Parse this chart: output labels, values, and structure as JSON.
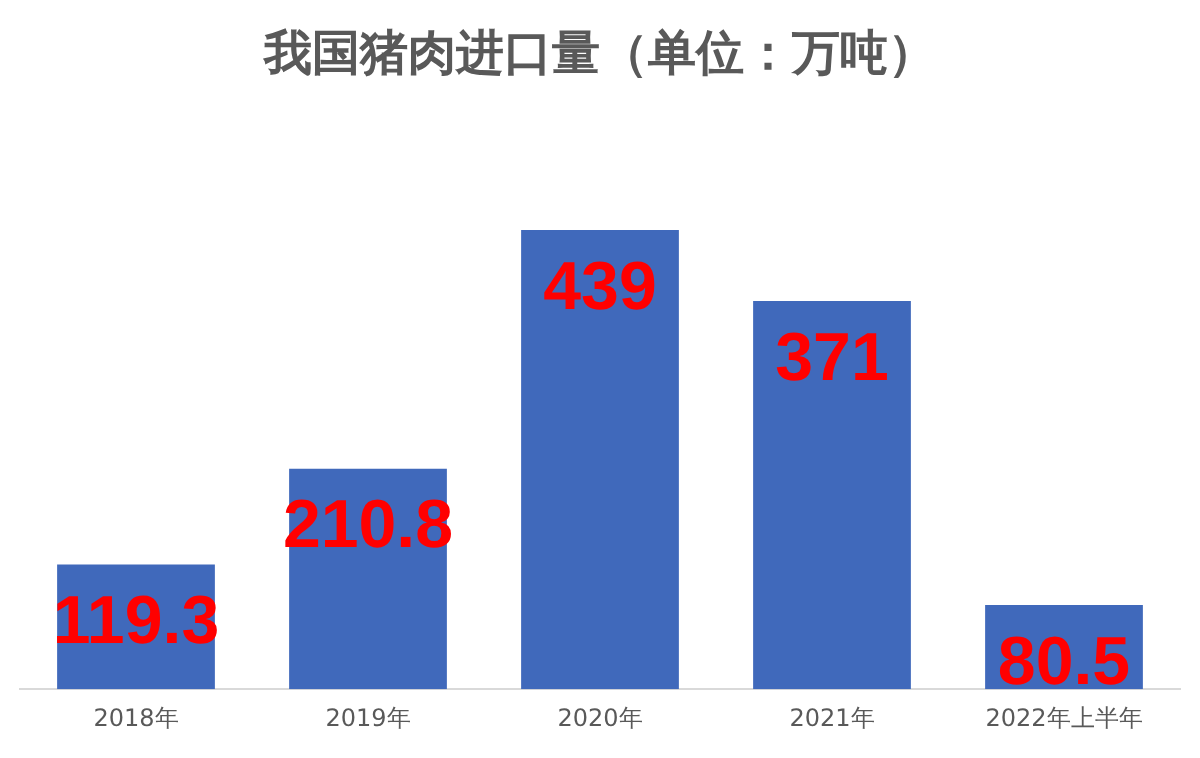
{
  "chart_data": {
    "type": "bar",
    "title": "我国猪肉进口量（单位：万吨）",
    "categories": [
      "2018年",
      "2019年",
      "2020年",
      "2021年",
      "2022年上半年"
    ],
    "values": [
      119.3,
      210.8,
      439,
      371,
      80.5
    ],
    "color": "#4069bb",
    "data_labels": true,
    "grid": false,
    "legend": false
  }
}
